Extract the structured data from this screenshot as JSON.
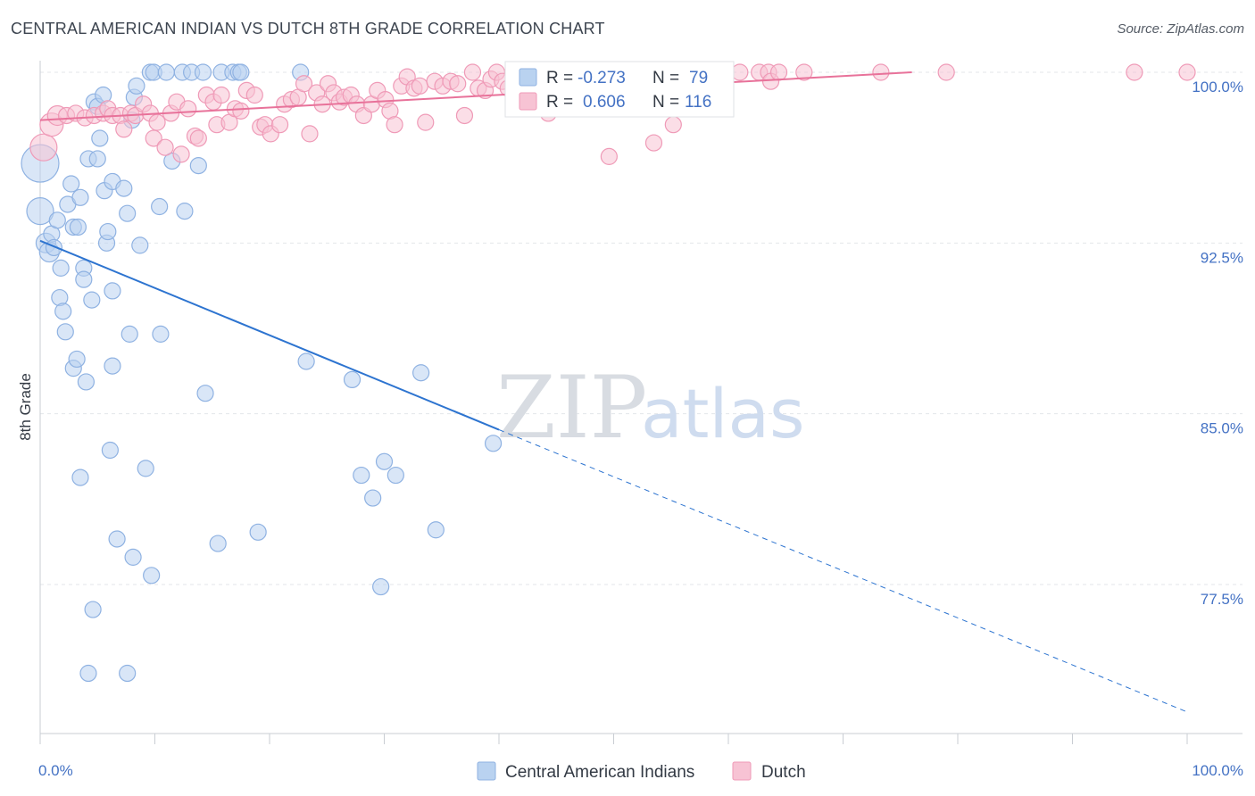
{
  "title": "CENTRAL AMERICAN INDIAN VS DUTCH 8TH GRADE CORRELATION CHART",
  "source": "Source: ZipAtlas.com",
  "colors": {
    "blue_fill": "#b9d2f0",
    "blue_stroke": "#8fb2e2",
    "blue_line": "#2d74d0",
    "pink_fill": "#f7c3d4",
    "pink_stroke": "#ef9ab7",
    "pink_line": "#e8729a",
    "grid": "#e3e6ea",
    "tick_text": "#4472c4"
  },
  "legend": {
    "rows": [
      {
        "r_label": "R =",
        "r_value": "-0.273",
        "n_label": "N =",
        "n_value": "79"
      },
      {
        "r_label": "R =",
        "r_value": "0.606",
        "n_label": "N =",
        "n_value": "116"
      }
    ]
  },
  "watermark": {
    "zip": "ZIP",
    "atlas": "atlas"
  },
  "chart_data": {
    "type": "scatter",
    "xlabel": "",
    "ylabel": "8th Grade",
    "xlim": [
      0,
      100
    ],
    "ylim": [
      71.5,
      100.8
    ],
    "x_tick_labels": [
      "0.0%",
      "100.0%"
    ],
    "y_ticks": [
      {
        "value": 100.0,
        "label": "100.0%"
      },
      {
        "value": 92.5,
        "label": "92.5%"
      },
      {
        "value": 85.0,
        "label": "85.0%"
      },
      {
        "value": 77.5,
        "label": "77.5%"
      }
    ],
    "grid": true,
    "series": [
      {
        "name": "Central American Indians",
        "color": "blue",
        "trend": {
          "x0": 0,
          "y0": 92.6,
          "x1": 40,
          "y1": 84.3,
          "dash_to_x": 100,
          "dash_to_y": 71.9
        },
        "points": [
          [
            0,
            96,
            20
          ],
          [
            0,
            93.9,
            14
          ],
          [
            0.5,
            92.5,
            10
          ],
          [
            0.8,
            92.1,
            10
          ],
          [
            1,
            92.9,
            8
          ],
          [
            1.2,
            92.3,
            8
          ],
          [
            1.5,
            93.5,
            8
          ],
          [
            1.8,
            91.4,
            8
          ],
          [
            1.7,
            90.1,
            8
          ],
          [
            2,
            89.5,
            8
          ],
          [
            2.2,
            88.6,
            8
          ],
          [
            2.4,
            94.2,
            8
          ],
          [
            2.7,
            95.1,
            8
          ],
          [
            2.9,
            93.2,
            8
          ],
          [
            3.3,
            93.2,
            8
          ],
          [
            2.9,
            87,
            8
          ],
          [
            3.2,
            87.4,
            8
          ],
          [
            3.5,
            94.5,
            8
          ],
          [
            3.8,
            91.4,
            8
          ],
          [
            3.8,
            90.9,
            8
          ],
          [
            4,
            86.4,
            8
          ],
          [
            4.2,
            96.2,
            8
          ],
          [
            4.5,
            90,
            8
          ],
          [
            3.5,
            82.2,
            8
          ],
          [
            4.7,
            98.7,
            8
          ],
          [
            5,
            98.5,
            8
          ],
          [
            5.2,
            97.1,
            8
          ],
          [
            5,
            96.2,
            8
          ],
          [
            5.5,
            99,
            8
          ],
          [
            5.6,
            94.8,
            8
          ],
          [
            5.8,
            92.5,
            8
          ],
          [
            5.9,
            93,
            8
          ],
          [
            6.3,
            95.2,
            8
          ],
          [
            6.3,
            90.4,
            8
          ],
          [
            6.3,
            87.1,
            8
          ],
          [
            6.1,
            83.4,
            8
          ],
          [
            6.7,
            79.5,
            8
          ],
          [
            4.6,
            76.4,
            8
          ],
          [
            4.2,
            73.6,
            8
          ],
          [
            7.3,
            94.9,
            8
          ],
          [
            7.6,
            93.8,
            8
          ],
          [
            7.8,
            88.5,
            8
          ],
          [
            8,
            97.9,
            8
          ],
          [
            8.2,
            98.9,
            8
          ],
          [
            8.4,
            99.4,
            8
          ],
          [
            8.7,
            92.4,
            8
          ],
          [
            9.2,
            82.6,
            8
          ],
          [
            8.1,
            78.7,
            8
          ],
          [
            9.7,
            77.9,
            8
          ],
          [
            7.6,
            73.6,
            8
          ],
          [
            9.6,
            100,
            8
          ],
          [
            9.9,
            100,
            8
          ],
          [
            10.4,
            94.1,
            8
          ],
          [
            10.5,
            88.5,
            8
          ],
          [
            11,
            100,
            8
          ],
          [
            11.5,
            96.1,
            8
          ],
          [
            12.4,
            100,
            8
          ],
          [
            12.6,
            93.9,
            8
          ],
          [
            13.2,
            100,
            8
          ],
          [
            13.8,
            95.9,
            8
          ],
          [
            14.2,
            100,
            8
          ],
          [
            14.4,
            85.9,
            8
          ],
          [
            15.5,
            79.3,
            8
          ],
          [
            15.8,
            100,
            8
          ],
          [
            16.8,
            100,
            8
          ],
          [
            17.3,
            100,
            8
          ],
          [
            17.5,
            100,
            8
          ],
          [
            19,
            79.8,
            8
          ],
          [
            22.7,
            100,
            8
          ],
          [
            23.2,
            87.3,
            8
          ],
          [
            27.2,
            86.5,
            8
          ],
          [
            28,
            82.3,
            8
          ],
          [
            29,
            81.3,
            8
          ],
          [
            30,
            82.9,
            8
          ],
          [
            29.7,
            77.4,
            8
          ],
          [
            31,
            82.3,
            8
          ],
          [
            33.2,
            86.8,
            8
          ],
          [
            34.5,
            79.9,
            8
          ],
          [
            39.5,
            83.7,
            8
          ]
        ]
      },
      {
        "name": "Dutch",
        "color": "pink",
        "trend": {
          "x0": 0,
          "y0": 97.9,
          "x1": 76,
          "y1": 100.0
        },
        "points": [
          [
            0.3,
            96.7,
            14
          ],
          [
            1,
            97.7,
            12
          ],
          [
            1.5,
            98.1,
            10
          ],
          [
            2.3,
            98.1,
            8
          ],
          [
            3.1,
            98.2,
            8
          ],
          [
            3.9,
            98,
            8
          ],
          [
            4.7,
            98.1,
            8
          ],
          [
            5.5,
            98.2,
            8
          ],
          [
            5.9,
            98.4,
            8
          ],
          [
            6.3,
            98.1,
            8
          ],
          [
            7,
            98.1,
            8
          ],
          [
            7.3,
            97.5,
            8
          ],
          [
            7.9,
            98.2,
            8
          ],
          [
            8.3,
            98.1,
            8
          ],
          [
            9,
            98.6,
            8
          ],
          [
            9.6,
            98.2,
            8
          ],
          [
            9.9,
            97.1,
            8
          ],
          [
            10.2,
            97.8,
            8
          ],
          [
            10.9,
            96.7,
            8
          ],
          [
            11.4,
            98.2,
            8
          ],
          [
            11.9,
            98.7,
            8
          ],
          [
            12.3,
            96.4,
            8
          ],
          [
            12.9,
            98.4,
            8
          ],
          [
            13.5,
            97.2,
            8
          ],
          [
            13.8,
            97.1,
            8
          ],
          [
            14.5,
            99,
            8
          ],
          [
            15.1,
            98.7,
            8
          ],
          [
            15.4,
            97.7,
            8
          ],
          [
            15.8,
            99,
            8
          ],
          [
            16.5,
            97.8,
            8
          ],
          [
            17,
            98.4,
            8
          ],
          [
            17.5,
            98.3,
            8
          ],
          [
            18,
            99.2,
            8
          ],
          [
            18.7,
            99,
            8
          ],
          [
            19.2,
            97.6,
            8
          ],
          [
            19.6,
            97.7,
            8
          ],
          [
            20.1,
            97.3,
            8
          ],
          [
            20.9,
            97.7,
            8
          ],
          [
            21.3,
            98.6,
            8
          ],
          [
            21.9,
            98.8,
            8
          ],
          [
            22.5,
            98.9,
            8
          ],
          [
            23,
            99.5,
            8
          ],
          [
            23.5,
            97.3,
            8
          ],
          [
            24.1,
            99.1,
            8
          ],
          [
            24.6,
            98.6,
            8
          ],
          [
            25.1,
            99.5,
            8
          ],
          [
            25.6,
            99.1,
            8
          ],
          [
            26.1,
            98.7,
            8
          ],
          [
            26.5,
            98.9,
            8
          ],
          [
            27.1,
            99,
            8
          ],
          [
            27.6,
            98.6,
            8
          ],
          [
            28.2,
            98.1,
            8
          ],
          [
            28.9,
            98.6,
            8
          ],
          [
            29.4,
            99.2,
            8
          ],
          [
            30.1,
            98.8,
            8
          ],
          [
            30.5,
            98.3,
            8
          ],
          [
            30.9,
            97.7,
            8
          ],
          [
            31.5,
            99.4,
            8
          ],
          [
            32,
            99.8,
            8
          ],
          [
            32.6,
            99.3,
            8
          ],
          [
            33.1,
            99.4,
            8
          ],
          [
            33.6,
            97.8,
            8
          ],
          [
            34.4,
            99.6,
            8
          ],
          [
            35.1,
            99.4,
            8
          ],
          [
            35.8,
            99.6,
            8
          ],
          [
            36.4,
            99.5,
            8
          ],
          [
            37,
            98.1,
            8
          ],
          [
            37.7,
            100,
            8
          ],
          [
            38.2,
            99.3,
            8
          ],
          [
            38.8,
            99.2,
            8
          ],
          [
            39.3,
            99.7,
            8
          ],
          [
            39.8,
            100,
            8
          ],
          [
            40.3,
            99.6,
            8
          ],
          [
            40.8,
            99.3,
            8
          ],
          [
            41.3,
            99.9,
            8
          ],
          [
            41.8,
            98.7,
            8
          ],
          [
            42.3,
            98.6,
            8
          ],
          [
            42.8,
            99.9,
            8
          ],
          [
            43.4,
            99.1,
            8
          ],
          [
            43.9,
            99.6,
            8
          ],
          [
            44.3,
            98.2,
            8
          ],
          [
            44.9,
            99.8,
            8
          ],
          [
            45.5,
            99.6,
            8
          ],
          [
            46,
            99.2,
            8
          ],
          [
            46.4,
            99.1,
            8
          ],
          [
            46.8,
            99.9,
            8
          ],
          [
            47.4,
            99.5,
            8
          ],
          [
            48,
            99.6,
            8
          ],
          [
            48.5,
            99.9,
            8
          ],
          [
            49.1,
            99.5,
            8
          ],
          [
            49.6,
            96.3,
            8
          ],
          [
            50.2,
            99.7,
            8
          ],
          [
            50.7,
            99.2,
            8
          ],
          [
            51.2,
            98.8,
            8
          ],
          [
            51.8,
            99.7,
            8
          ],
          [
            52.4,
            99.9,
            8
          ],
          [
            52.9,
            99.3,
            8
          ],
          [
            53.5,
            96.9,
            8
          ],
          [
            54,
            99.7,
            8
          ],
          [
            54.6,
            99.5,
            8
          ],
          [
            55.2,
            97.7,
            8
          ],
          [
            55.8,
            99.9,
            8
          ],
          [
            56.4,
            99.3,
            8
          ],
          [
            57,
            99.9,
            8
          ],
          [
            57.5,
            99.4,
            8
          ],
          [
            58.1,
            99.9,
            8
          ],
          [
            58.9,
            99.9,
            8
          ],
          [
            59.5,
            100,
            8
          ],
          [
            61,
            100,
            8
          ],
          [
            62.7,
            100,
            8
          ],
          [
            63.5,
            100,
            8
          ],
          [
            63.7,
            99.6,
            8
          ],
          [
            64.4,
            100,
            8
          ],
          [
            66.6,
            100,
            8
          ],
          [
            73.3,
            100,
            8
          ],
          [
            79,
            100,
            8
          ],
          [
            95.4,
            100,
            8
          ],
          [
            100,
            100,
            8
          ]
        ]
      }
    ]
  }
}
